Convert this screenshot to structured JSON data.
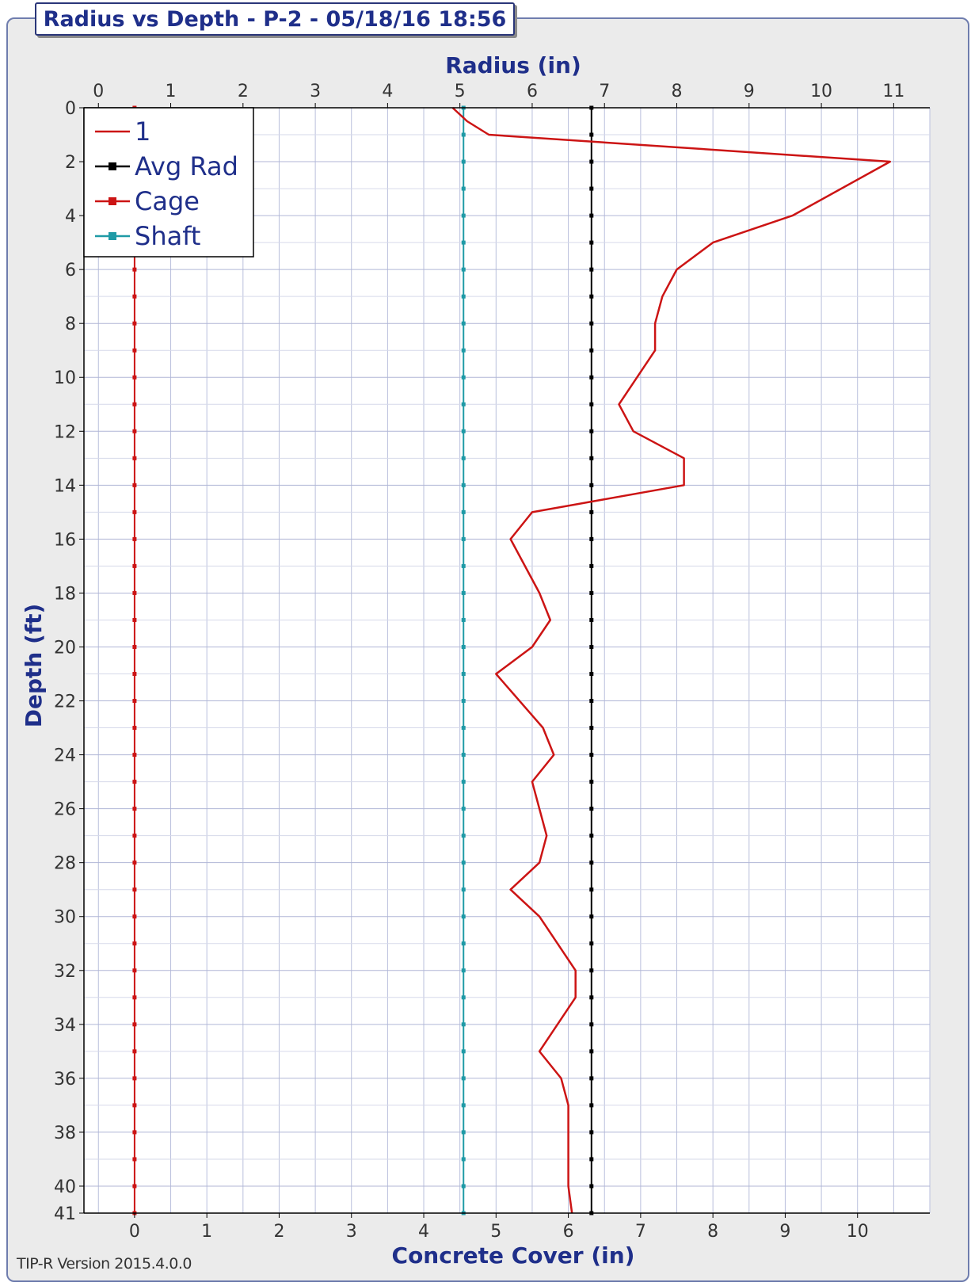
{
  "chart_data": {
    "type": "line",
    "title": "Radius vs Depth - P-2 - 05/18/16 18:56",
    "top_axis": {
      "label": "Radius (in)",
      "ticks": [
        0,
        1,
        2,
        3,
        4,
        5,
        6,
        7,
        8,
        9,
        10,
        11
      ],
      "range": [
        -0.2,
        11.5
      ]
    },
    "bottom_axis": {
      "label": "Concrete Cover (in)",
      "ticks": [
        0,
        1,
        2,
        3,
        4,
        5,
        6,
        7,
        8,
        9,
        10
      ],
      "radius_offset": 0.5
    },
    "y_axis": {
      "label": "Depth (ft)",
      "ticks": [
        0,
        2,
        4,
        6,
        8,
        10,
        12,
        14,
        16,
        18,
        20,
        22,
        24,
        26,
        28,
        30,
        32,
        34,
        36,
        38,
        40,
        41
      ],
      "range": [
        0,
        41
      ],
      "inverted": true
    },
    "grid": true,
    "legend_position": "top-left",
    "series": [
      {
        "name": "1",
        "color": "#cc1414",
        "radius": [
          4.9,
          5.1,
          5.4,
          10.95,
          9.6,
          8.5,
          8.0,
          7.8,
          7.7,
          7.7,
          7.2,
          7.4,
          8.1,
          8.1,
          6.0,
          5.7,
          6.1,
          6.25,
          6.0,
          5.5,
          6.15,
          6.3,
          6.0,
          6.2,
          6.1,
          5.7,
          6.1,
          6.6,
          6.6,
          6.1,
          6.4,
          6.5,
          6.5,
          6.55
        ],
        "depth": [
          0,
          0.5,
          1,
          2,
          4,
          5,
          6,
          7,
          8,
          9,
          11,
          12,
          13,
          14,
          15,
          16,
          18,
          19,
          20,
          21,
          23,
          24,
          25,
          27,
          28,
          29,
          30,
          32,
          33,
          35,
          36,
          37,
          40,
          41
        ]
      },
      {
        "name": "Avg Rad",
        "color": "#000000",
        "radius": 6.82
      },
      {
        "name": "Cage",
        "color": "#cc1414",
        "radius": 0.5
      },
      {
        "name": "Shaft",
        "color": "#1f9aa6",
        "radius": 5.05
      }
    ]
  },
  "legend": [
    {
      "label": "1",
      "color": "#cc1414",
      "marker": false
    },
    {
      "label": "Avg Rad",
      "color": "#000000",
      "marker": true
    },
    {
      "label": "Cage",
      "color": "#cc1414",
      "marker": true
    },
    {
      "label": "Shaft",
      "color": "#1f9aa6",
      "marker": true
    }
  ],
  "footer": {
    "version": "TIP-R Version 2015.4.0.0"
  }
}
